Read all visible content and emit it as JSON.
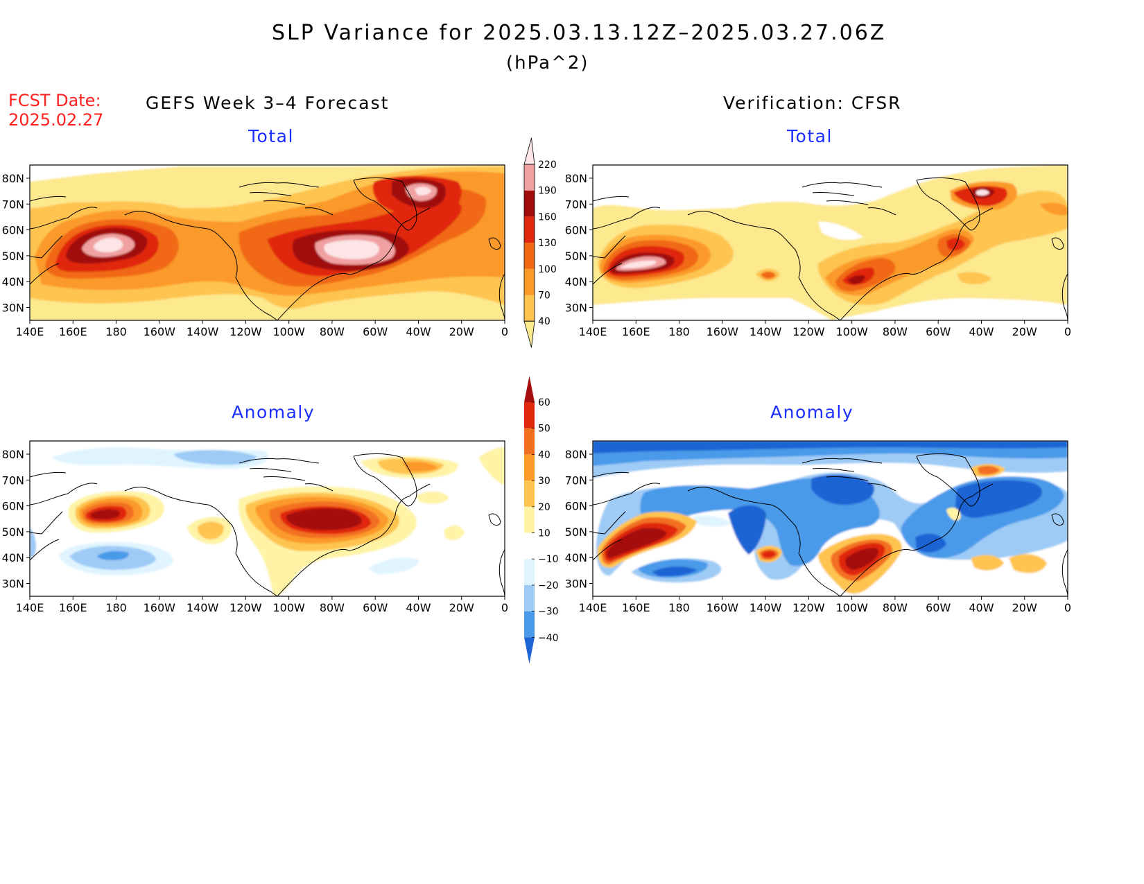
{
  "header": {
    "title": "SLP Variance for 2025.03.13.12Z–2025.03.27.06Z",
    "units": "(hPa^2)",
    "fcst_date_label": "FCST Date:",
    "fcst_date_value": "2025.02.27"
  },
  "columns": {
    "left": "GEFS Week 3–4 Forecast",
    "right": "Verification: CFSR"
  },
  "panels": {
    "total_label": "Total",
    "anomaly_label": "Anomaly"
  },
  "axes": {
    "lon_ticks": [
      "140E",
      "160E",
      "180",
      "160W",
      "140W",
      "120W",
      "100W",
      "80W",
      "60W",
      "40W",
      "20W",
      "0"
    ],
    "lat_ticks": [
      "80N",
      "70N",
      "60N",
      "50N",
      "40N",
      "30N"
    ]
  },
  "colorbars": {
    "total": {
      "levels": [
        "40",
        "70",
        "100",
        "130",
        "160",
        "190",
        "220"
      ],
      "colors": [
        "#fde98e",
        "#fec44f",
        "#fb9a29",
        "#f16913",
        "#e0280f",
        "#a00c0c",
        "#f0a0a0",
        "#fde4e6"
      ]
    },
    "anomaly": {
      "levels": [
        "60",
        "50",
        "40",
        "30",
        "20",
        "10",
        "−10",
        "−20",
        "−30",
        "−40"
      ],
      "colors": [
        "#a50f0f",
        "#e0280f",
        "#f36f20",
        "#fb9a29",
        "#fec44f",
        "#fff3a6",
        "#ffffff",
        "#dff4ff",
        "#9ecbf5",
        "#4a9ae9",
        "#1e64d4"
      ]
    }
  }
}
